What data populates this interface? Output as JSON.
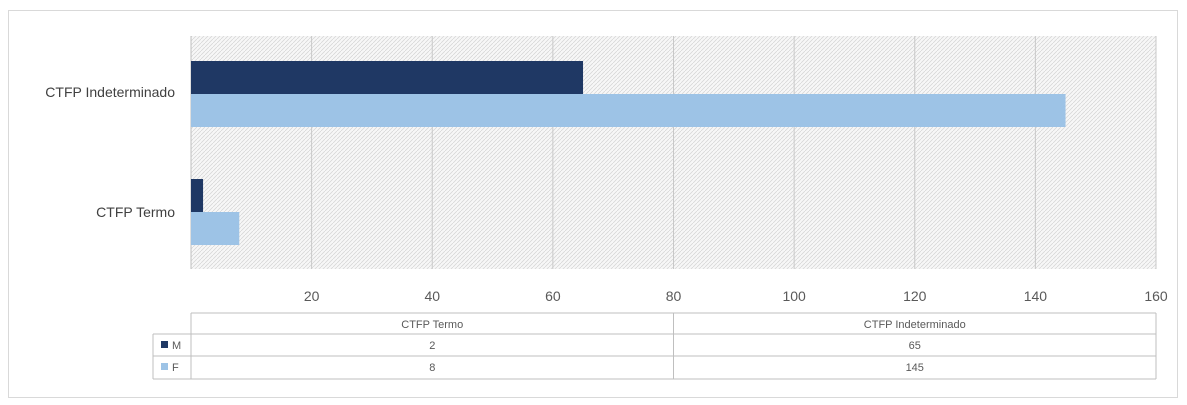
{
  "chart_data": {
    "type": "bar",
    "orientation": "horizontal",
    "categories": [
      "CTFP Indeterminado",
      "CTFP Termo"
    ],
    "series": [
      {
        "name": "M",
        "color": "#1f3864",
        "values": [
          65,
          2
        ]
      },
      {
        "name": "F",
        "color": "#9dc3e6",
        "values": [
          145,
          8
        ]
      }
    ],
    "xlim": [
      0,
      160
    ],
    "x_ticks": [
      20,
      40,
      60,
      80,
      100,
      120,
      140,
      160
    ],
    "grid": true,
    "plot_background": "hatched light gray",
    "data_table": {
      "columns": [
        "CTFP Termo",
        "CTFP Indeterminado"
      ],
      "rows": [
        {
          "series": "M",
          "values": [
            "2",
            "65"
          ]
        },
        {
          "series": "F",
          "values": [
            "8",
            "145"
          ]
        }
      ]
    }
  }
}
